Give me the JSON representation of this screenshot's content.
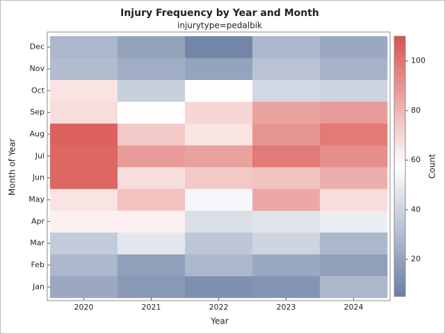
{
  "chart_data": {
    "type": "heatmap",
    "title": "Injury Frequency by Year and Month",
    "subtitle": "injurytype=pedalbik",
    "x_label": "Year",
    "y_label": "Month of Year",
    "colorbar_label": "Count",
    "categories": [
      "2020",
      "2021",
      "2022",
      "2023",
      "2024"
    ],
    "rows": [
      "Jan",
      "Feb",
      "Mar",
      "Apr",
      "May",
      "Jun",
      "Jul",
      "Aug",
      "Sep",
      "Oct",
      "Nov",
      "Dec"
    ],
    "values": [
      [
        22,
        16,
        12,
        14,
        28
      ],
      [
        28,
        18,
        28,
        22,
        18
      ],
      [
        36,
        48,
        34,
        40,
        28
      ],
      [
        62,
        62,
        44,
        46,
        50
      ],
      [
        66,
        76,
        54,
        84,
        68
      ],
      [
        104,
        68,
        74,
        76,
        82
      ],
      [
        104,
        88,
        86,
        98,
        92
      ],
      [
        106,
        74,
        66,
        90,
        98
      ],
      [
        68,
        58,
        70,
        86,
        88
      ],
      [
        66,
        38,
        57,
        42,
        40
      ],
      [
        30,
        24,
        20,
        33,
        26
      ],
      [
        28,
        20,
        8,
        28,
        22
      ]
    ],
    "clim": [
      5,
      110
    ],
    "cticks": [
      20,
      40,
      60,
      80,
      100
    ],
    "colors": [
      "#6b7fa3",
      "#ffffff",
      "#d9534f"
    ]
  }
}
